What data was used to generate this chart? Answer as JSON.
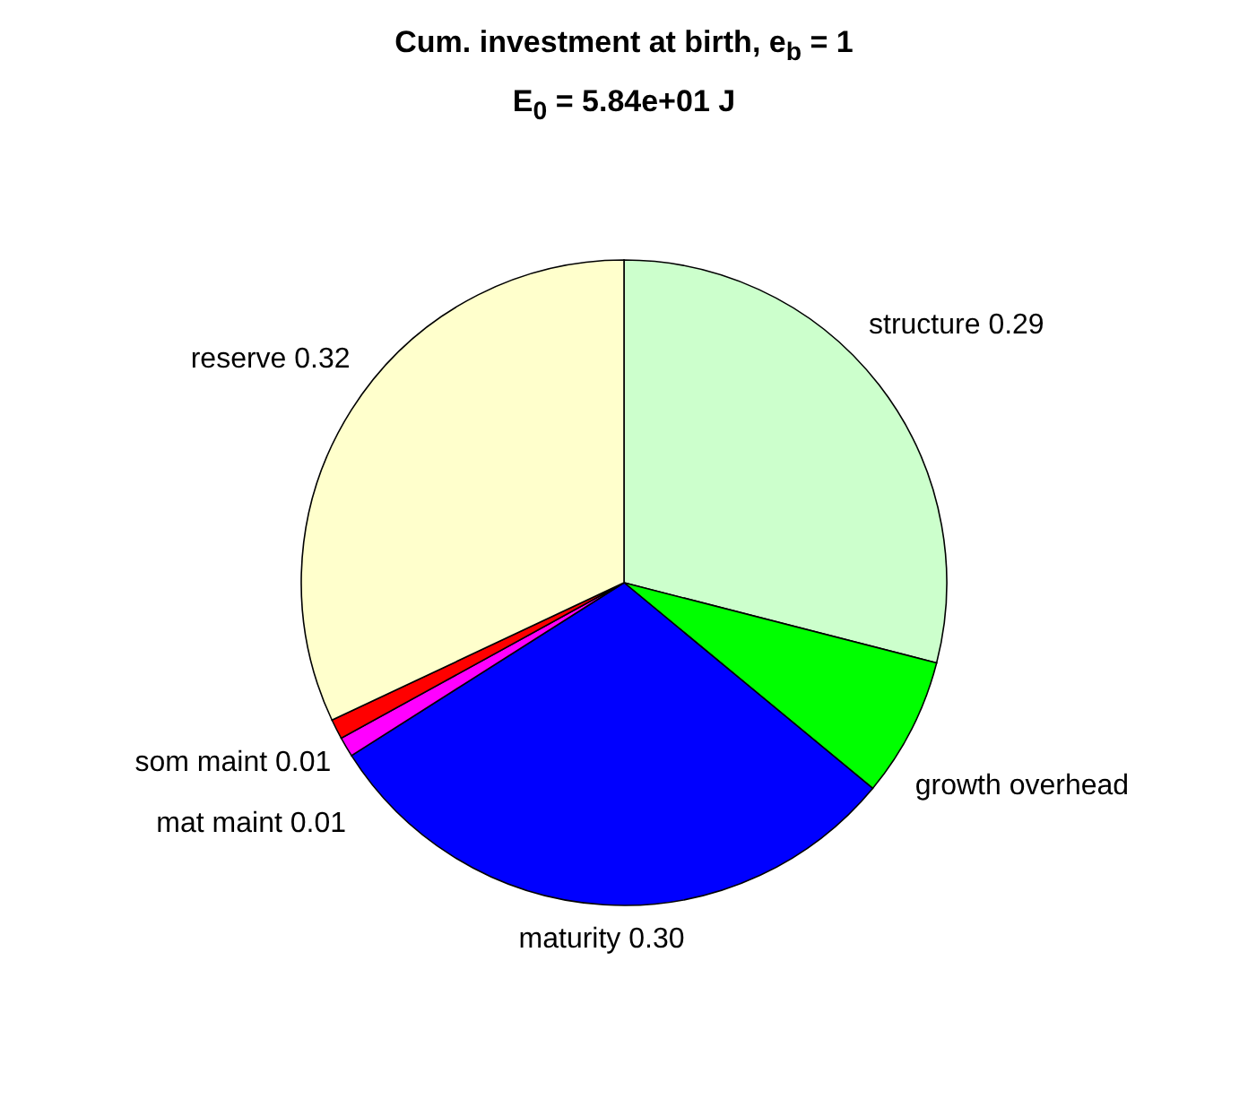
{
  "chart_data": {
    "type": "pie",
    "title": "Cum. investment at birth, e$_{b}$ = 1",
    "subtitle": "E$_{0}$ = 5.84e+01 J",
    "categories": [
      "structure",
      "growth overhead",
      "maturity",
      "mat maint",
      "som maint",
      "reserve"
    ],
    "values": [
      0.29,
      0.07,
      0.3,
      0.01,
      0.01,
      0.32
    ],
    "value_labels": [
      "0.29",
      null,
      "0.30",
      "0.01",
      "0.01",
      "0.32"
    ],
    "colors": [
      "#ccffcc",
      "#00ff00",
      "#0000ff",
      "#ff00ff",
      "#ff0000",
      "#ffffcc"
    ]
  }
}
